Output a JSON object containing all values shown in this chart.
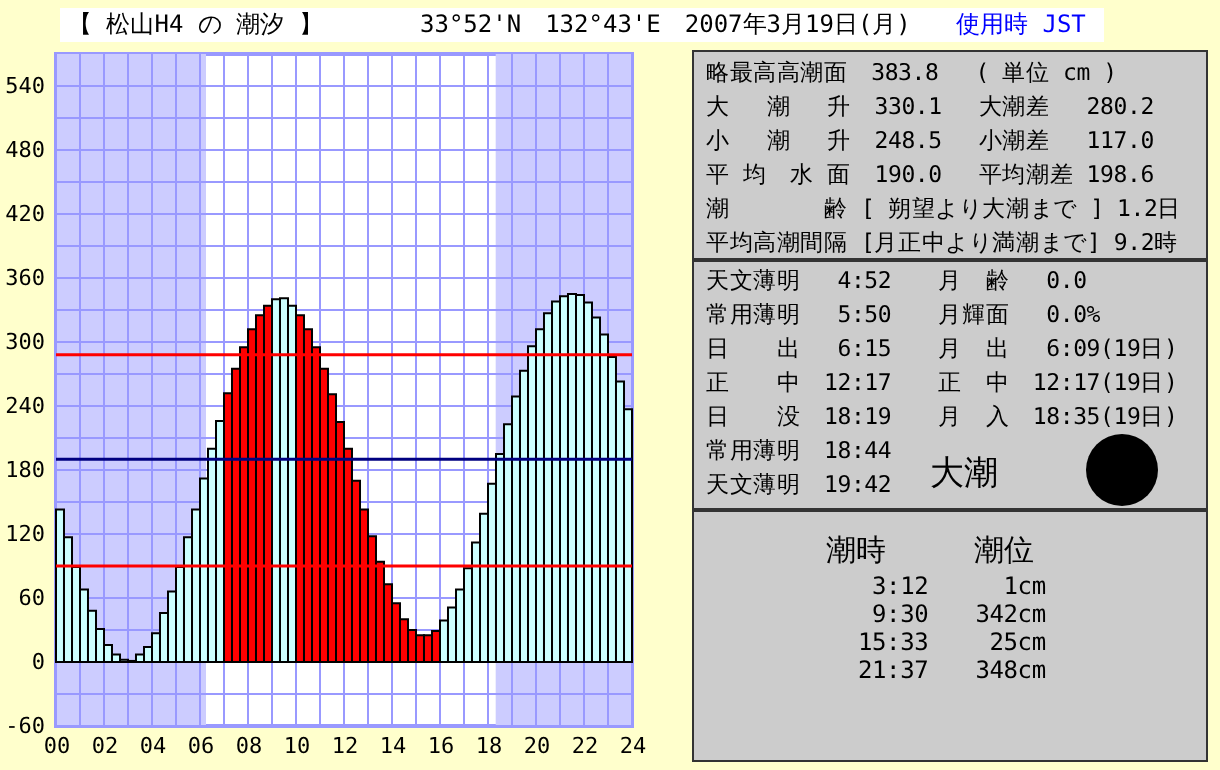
{
  "chart_data": {
    "type": "bar",
    "title": "【 松山H4 の 潮汐 】",
    "subtitle": "33°52'N　132°43'E　2007年3月19日(月)",
    "x": [
      0,
      0.333,
      0.667,
      1,
      1.333,
      1.667,
      2,
      2.333,
      2.667,
      3,
      3.333,
      3.667,
      4,
      4.333,
      4.667,
      5,
      5.333,
      5.667,
      6,
      6.333,
      6.667,
      7,
      7.333,
      7.667,
      8,
      8.333,
      8.667,
      9,
      9.333,
      9.667,
      10,
      10.333,
      10.667,
      11,
      11.333,
      11.667,
      12,
      12.333,
      12.667,
      13,
      13.333,
      13.667,
      14,
      14.333,
      14.667,
      15,
      15.333,
      15.667,
      16,
      16.333,
      16.667,
      17,
      17.333,
      17.667,
      18,
      18.333,
      18.667,
      19,
      19.333,
      19.667,
      20,
      20.333,
      20.667,
      21,
      21.333,
      21.667,
      22,
      22.333,
      22.667,
      23,
      23.333,
      23.667
    ],
    "values": [
      143,
      117,
      89,
      68,
      48,
      31,
      16,
      7,
      2,
      1,
      7,
      14,
      27,
      46,
      66,
      89,
      117,
      143,
      172,
      200,
      226,
      252,
      275,
      295,
      312,
      325,
      334,
      340,
      341,
      334,
      325,
      312,
      295,
      275,
      251,
      225,
      200,
      170,
      143,
      118,
      94,
      73,
      55,
      40,
      30,
      25,
      25,
      29,
      39,
      51,
      68,
      88,
      112,
      139,
      167,
      195,
      223,
      249,
      273,
      296,
      312,
      327,
      338,
      343,
      345,
      344,
      337,
      323,
      307,
      286,
      263,
      237
    ],
    "colors": [
      "#ccffff",
      "#ccffff",
      "#ccffff",
      "#ccffff",
      "#ccffff",
      "#ccffff",
      "#ccffff",
      "#ccffff",
      "#ccffff",
      "#ccffff",
      "#ccffff",
      "#ccffff",
      "#ccffff",
      "#ccffff",
      "#ccffff",
      "#ccffff",
      "#ccffff",
      "#ccffff",
      "#ccffff",
      "#ccffff",
      "#ccffff",
      "#ff0000",
      "#ff0000",
      "#ff0000",
      "#ff0000",
      "#ff0000",
      "#ff0000",
      "#ccffff",
      "#ccffff",
      "#ccffff",
      "#ff0000",
      "#ff0000",
      "#ff0000",
      "#ff0000",
      "#ff0000",
      "#ff0000",
      "#ff0000",
      "#ff0000",
      "#ff0000",
      "#ff0000",
      "#ff0000",
      "#ff0000",
      "#ff0000",
      "#ff0000",
      "#ff0000",
      "#ff0000",
      "#ff0000",
      "#ff0000",
      "#ccffff",
      "#ccffff",
      "#ccffff",
      "#ccffff",
      "#ccffff",
      "#ccffff",
      "#ccffff",
      "#ccffff",
      "#ccffff",
      "#ccffff",
      "#ccffff",
      "#ccffff",
      "#ccffff",
      "#ccffff",
      "#ccffff",
      "#ccffff",
      "#ccffff",
      "#ccffff",
      "#ccffff",
      "#ccffff",
      "#ccffff",
      "#ccffff",
      "#ccffff",
      "#ccffff"
    ],
    "xlim": [
      0,
      24
    ],
    "xticks": [
      {
        "value": 0,
        "label": "00"
      },
      {
        "value": 1,
        "label": null
      },
      {
        "value": 2,
        "label": "02"
      },
      {
        "value": 3,
        "label": null
      },
      {
        "value": 4,
        "label": "04"
      },
      {
        "value": 5,
        "label": null
      },
      {
        "value": 6,
        "label": "06"
      },
      {
        "value": 7,
        "label": null
      },
      {
        "value": 8,
        "label": "08"
      },
      {
        "value": 9,
        "label": null
      },
      {
        "value": 10,
        "label": "10"
      },
      {
        "value": 11,
        "label": null
      },
      {
        "value": 12,
        "label": "12"
      },
      {
        "value": 13,
        "label": null
      },
      {
        "value": 14,
        "label": "14"
      },
      {
        "value": 15,
        "label": null
      },
      {
        "value": 16,
        "label": "16"
      },
      {
        "value": 17,
        "label": null
      },
      {
        "value": 18,
        "label": "18"
      },
      {
        "value": 19,
        "label": null
      },
      {
        "value": 20,
        "label": "20"
      },
      {
        "value": 21,
        "label": null
      },
      {
        "value": 22,
        "label": "22"
      },
      {
        "value": 23,
        "label": null
      },
      {
        "value": 24,
        "label": "24"
      }
    ],
    "ylim": [
      -60,
      570
    ],
    "yticks": [
      -60,
      {
        "value": -30,
        "label": null
      },
      0,
      {
        "value": 30,
        "label": null
      },
      60,
      {
        "value": 90,
        "label": null
      },
      120,
      {
        "value": 150,
        "label": null
      },
      180,
      {
        "value": 210,
        "label": null
      },
      240,
      {
        "value": 270,
        "label": null
      },
      300,
      {
        "value": 330,
        "label": null
      },
      360,
      {
        "value": 390,
        "label": null
      },
      420,
      {
        "value": 450,
        "label": null
      },
      480,
      {
        "value": 510,
        "label": null
      },
      540
    ],
    "grid": true,
    "bands": [
      {
        "axis": "x",
        "from": 0,
        "to": 6.25,
        "color": "#ccccff"
      },
      {
        "axis": "x",
        "from": 18.32,
        "to": 24,
        "color": "#ccccff"
      }
    ],
    "ref_lines": [
      {
        "axis": "y",
        "value": 288,
        "color": "#ff0000"
      },
      {
        "axis": "y",
        "value": 190,
        "color": "#000080"
      },
      {
        "axis": "y",
        "value": 90,
        "color": "#ff0000"
      }
    ],
    "annotations": [
      "使用時 JST",
      "略最高高潮面　383.8　 ( 単位 cm )",
      "大　 潮　 升　330.1　 大潮差　 280.2",
      "小　 潮　 升　248.5　 小潮差　 117.0",
      "平 均　水 面　190.0　 平均潮差 198.6",
      "潮　　　　齢 [ 朔望より大潮まで ] 1.2日",
      "平均高潮間隔 [月正中より満潮まで] 9.2時",
      "天文薄明　 4:52　　月　齢　 0.0",
      "常用薄明　 5:50　　月輝面　 0.0%",
      "日　　出　 6:15　　月　出　 6:09(19日)",
      "正　　中　12:17　　正　中　12:17(19日)",
      "日　　没　18:19　　月　入　18:35(19日)",
      "常用薄明　18:44",
      "天文薄明　19:42",
      "大潮",
      "潮時　　　潮位",
      " 3:12　　  1cm",
      " 9:30　　342cm",
      "15:33　　 25cm",
      "21:37　　348cm"
    ]
  }
}
